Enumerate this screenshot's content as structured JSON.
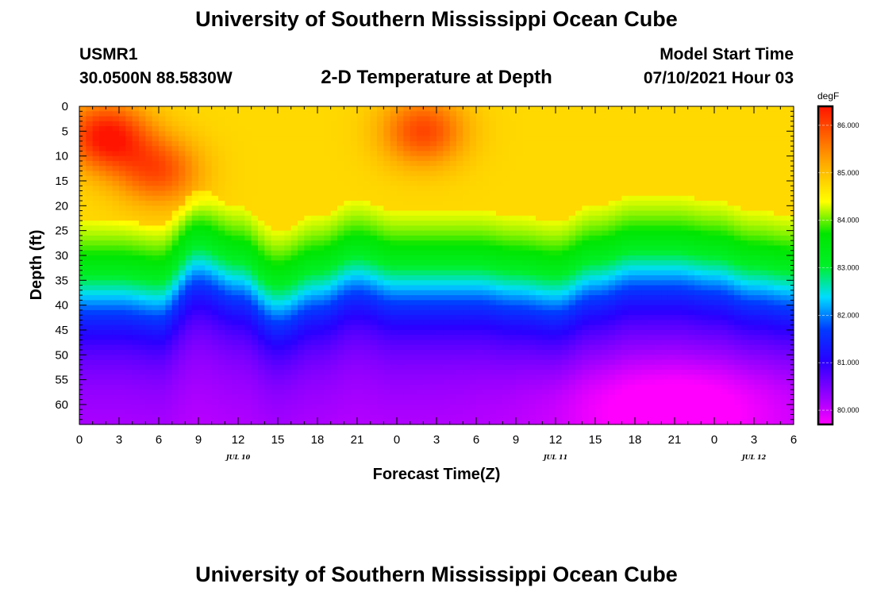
{
  "header": {
    "title_top": "University of Southern Mississippi Ocean Cube",
    "title_bottom": "University of Southern Mississippi Ocean Cube",
    "station_id": "USMR1",
    "location": "30.0500N  88.5830W",
    "plot_title": "2-D Temperature at Depth",
    "model_label": "Model Start Time",
    "model_time": "07/10/2021 Hour 03"
  },
  "colors": {
    "background": "#ffffff",
    "axis": "#000000"
  },
  "chart_data": {
    "type": "heatmap",
    "title": "2-D Temperature at Depth",
    "xlabel": "Forecast Time(Z)",
    "ylabel": "Depth (ft)",
    "x_tick_labels": [
      "0",
      "3",
      "6",
      "9",
      "12",
      "15",
      "18",
      "21",
      "0",
      "3",
      "6",
      "9",
      "12",
      "15",
      "18",
      "21",
      "0",
      "3",
      "6"
    ],
    "x_hours": [
      0,
      3,
      6,
      9,
      12,
      15,
      18,
      21,
      24,
      27,
      30,
      33,
      36,
      39,
      42,
      45,
      48,
      51,
      54
    ],
    "date_labels": [
      {
        "label": "JUL 10",
        "hour": 12
      },
      {
        "label": "JUL 11",
        "hour": 36
      },
      {
        "label": "JUL 12",
        "hour": 51
      }
    ],
    "xlim": [
      0,
      54
    ],
    "y_ticks": [
      0,
      5,
      10,
      15,
      20,
      25,
      30,
      35,
      40,
      45,
      50,
      55,
      60
    ],
    "ylim": [
      0,
      64
    ],
    "colorbar": {
      "unit": "degF",
      "min": 79.7,
      "max": 86.4,
      "tick_values": [
        80,
        81,
        82,
        83,
        84,
        85,
        86
      ],
      "tick_labels": [
        "80.000",
        "81.000",
        "82.000",
        "83.000",
        "84.000",
        "85.000",
        "86.000"
      ]
    },
    "thermocline_depth_ft": {
      "hours": [
        0,
        3,
        6,
        9,
        12,
        15,
        18,
        21,
        24,
        27,
        30,
        33,
        36,
        39,
        42,
        45,
        48,
        51,
        54
      ],
      "values": [
        37,
        37,
        38,
        31,
        34,
        39,
        36,
        33,
        35,
        35,
        35,
        36,
        37,
        34,
        32,
        32,
        33,
        35,
        36
      ]
    },
    "surface_hotspots": [
      {
        "hour": 2,
        "depth_ft": 6,
        "temp_f": 86.4
      },
      {
        "hour": 6,
        "depth_ft": 13,
        "temp_f": 85.9
      },
      {
        "hour": 26,
        "depth_ft": 5,
        "temp_f": 86.0
      }
    ],
    "bottom_min": {
      "hour": 45,
      "depth_ft": 60,
      "temp_f": 79.7
    }
  }
}
